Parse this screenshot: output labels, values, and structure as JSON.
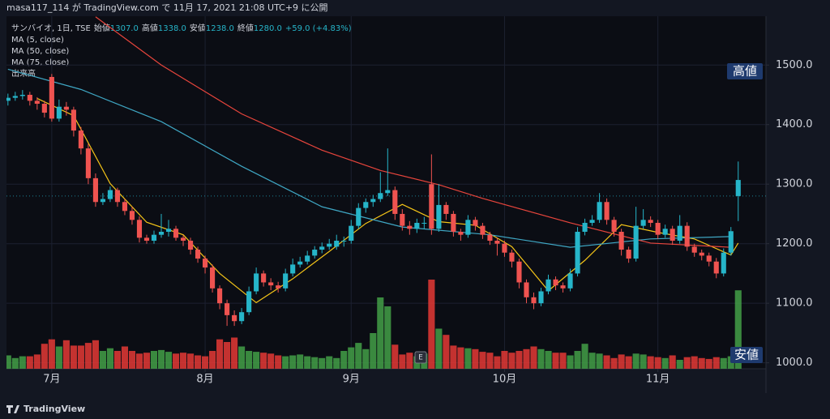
{
  "header": "masa117_114 が TradingView.com で 11月 17, 2021 21:08 UTC+9 に公開",
  "footer": "TradingView",
  "chart_data": {
    "type": "candlestick",
    "symbol": "サンバイオ, 1日, TSE",
    "ohlc_legend": [
      {
        "label": "始値",
        "value": "1307.0"
      },
      {
        "label": "高値",
        "value": "1338.0"
      },
      {
        "label": "安値",
        "value": "1238.0"
      },
      {
        "label": "終値",
        "value": "1280.0"
      }
    ],
    "change": "+59.0 (+4.83%)",
    "volume_name": "出来高",
    "high_tag": "高値",
    "low_tag": "安値",
    "event_tag": "E",
    "up_color": "#26b5c9",
    "down_color": "#ef5350",
    "volume_up_color": "#43a047",
    "volume_down_color": "#e53935",
    "grid": true,
    "xlim": [
      -0.2,
      103.8
    ],
    "ylim": [
      990,
      1582
    ],
    "vlim": [
      0,
      100
    ],
    "yticks": [
      {
        "value": 1000,
        "label": "1000.0"
      },
      {
        "value": 1100,
        "label": "1100.0"
      },
      {
        "value": 1200,
        "label": "1200.0"
      },
      {
        "value": 1300,
        "label": "1300.0"
      },
      {
        "value": 1400,
        "label": "1400.0"
      },
      {
        "value": 1500,
        "label": "1500.0"
      }
    ],
    "xticks": [
      {
        "value": 6,
        "label": "7月"
      },
      {
        "value": 27,
        "label": "8月"
      },
      {
        "value": 47,
        "label": "9月"
      },
      {
        "value": 68,
        "label": "10月"
      },
      {
        "value": 89,
        "label": "11月"
      }
    ],
    "ohlc": [
      [
        1440,
        1452,
        1432,
        1445
      ],
      [
        1445,
        1455,
        1440,
        1448
      ],
      [
        1448,
        1458,
        1442,
        1450
      ],
      [
        1450,
        1455,
        1432,
        1440
      ],
      [
        1440,
        1446,
        1425,
        1435
      ],
      [
        1435,
        1440,
        1412,
        1420
      ],
      [
        1480,
        1485,
        1405,
        1410
      ],
      [
        1410,
        1442,
        1405,
        1430
      ],
      [
        1430,
        1438,
        1415,
        1425
      ],
      [
        1425,
        1430,
        1380,
        1390
      ],
      [
        1390,
        1396,
        1350,
        1360
      ],
      [
        1360,
        1368,
        1300,
        1310
      ],
      [
        1310,
        1318,
        1262,
        1270
      ],
      [
        1270,
        1285,
        1265,
        1275
      ],
      [
        1275,
        1296,
        1270,
        1290
      ],
      [
        1290,
        1294,
        1262,
        1270
      ],
      [
        1270,
        1275,
        1248,
        1255
      ],
      [
        1255,
        1262,
        1232,
        1240
      ],
      [
        1240,
        1246,
        1202,
        1210
      ],
      [
        1210,
        1215,
        1200,
        1205
      ],
      [
        1205,
        1222,
        1200,
        1215
      ],
      [
        1215,
        1250,
        1210,
        1220
      ],
      [
        1220,
        1240,
        1212,
        1225
      ],
      [
        1225,
        1230,
        1205,
        1210
      ],
      [
        1210,
        1214,
        1196,
        1205
      ],
      [
        1205,
        1210,
        1182,
        1190
      ],
      [
        1190,
        1195,
        1168,
        1175
      ],
      [
        1175,
        1180,
        1150,
        1160
      ],
      [
        1160,
        1165,
        1118,
        1125
      ],
      [
        1125,
        1130,
        1090,
        1100
      ],
      [
        1100,
        1106,
        1062,
        1080
      ],
      [
        1080,
        1088,
        1062,
        1070
      ],
      [
        1070,
        1092,
        1065,
        1085
      ],
      [
        1085,
        1128,
        1080,
        1120
      ],
      [
        1120,
        1160,
        1115,
        1150
      ],
      [
        1150,
        1155,
        1128,
        1135
      ],
      [
        1135,
        1142,
        1122,
        1130
      ],
      [
        1130,
        1136,
        1118,
        1125
      ],
      [
        1125,
        1158,
        1120,
        1150
      ],
      [
        1150,
        1175,
        1145,
        1165
      ],
      [
        1165,
        1178,
        1160,
        1170
      ],
      [
        1170,
        1188,
        1165,
        1180
      ],
      [
        1180,
        1196,
        1175,
        1190
      ],
      [
        1190,
        1202,
        1184,
        1195
      ],
      [
        1195,
        1208,
        1190,
        1200
      ],
      [
        1195,
        1215,
        1190,
        1205
      ],
      [
        1205,
        1212,
        1195,
        1205
      ],
      [
        1205,
        1240,
        1200,
        1230
      ],
      [
        1230,
        1268,
        1225,
        1260
      ],
      [
        1260,
        1276,
        1252,
        1270
      ],
      [
        1270,
        1282,
        1262,
        1275
      ],
      [
        1275,
        1320,
        1270,
        1285
      ],
      [
        1285,
        1360,
        1280,
        1290
      ],
      [
        1290,
        1296,
        1240,
        1250
      ],
      [
        1250,
        1258,
        1222,
        1230
      ],
      [
        1230,
        1238,
        1215,
        1225
      ],
      [
        1225,
        1242,
        1218,
        1235
      ],
      [
        1235,
        1245,
        1225,
        1235
      ],
      [
        1300,
        1350,
        1215,
        1225
      ],
      [
        1225,
        1300,
        1220,
        1265
      ],
      [
        1265,
        1270,
        1240,
        1250
      ],
      [
        1250,
        1255,
        1212,
        1220
      ],
      [
        1220,
        1225,
        1205,
        1215
      ],
      [
        1215,
        1248,
        1210,
        1240
      ],
      [
        1240,
        1245,
        1222,
        1230
      ],
      [
        1230,
        1235,
        1208,
        1215
      ],
      [
        1215,
        1220,
        1198,
        1205
      ],
      [
        1205,
        1210,
        1180,
        1200
      ],
      [
        1200,
        1205,
        1178,
        1185
      ],
      [
        1185,
        1190,
        1160,
        1170
      ],
      [
        1170,
        1175,
        1125,
        1135
      ],
      [
        1135,
        1140,
        1100,
        1110
      ],
      [
        1110,
        1118,
        1090,
        1100
      ],
      [
        1100,
        1126,
        1095,
        1120
      ],
      [
        1120,
        1148,
        1115,
        1140
      ],
      [
        1140,
        1145,
        1122,
        1130
      ],
      [
        1130,
        1135,
        1118,
        1125
      ],
      [
        1125,
        1158,
        1120,
        1150
      ],
      [
        1150,
        1228,
        1145,
        1220
      ],
      [
        1220,
        1242,
        1214,
        1235
      ],
      [
        1235,
        1248,
        1230,
        1240
      ],
      [
        1240,
        1285,
        1235,
        1270
      ],
      [
        1270,
        1276,
        1232,
        1240
      ],
      [
        1240,
        1245,
        1212,
        1220
      ],
      [
        1220,
        1225,
        1180,
        1190
      ],
      [
        1190,
        1195,
        1168,
        1175
      ],
      [
        1175,
        1262,
        1170,
        1230
      ],
      [
        1230,
        1258,
        1225,
        1240
      ],
      [
        1240,
        1246,
        1228,
        1235
      ],
      [
        1235,
        1240,
        1208,
        1215
      ],
      [
        1215,
        1232,
        1210,
        1225
      ],
      [
        1225,
        1230,
        1198,
        1205
      ],
      [
        1205,
        1248,
        1200,
        1230
      ],
      [
        1230,
        1236,
        1188,
        1195
      ],
      [
        1195,
        1200,
        1178,
        1185
      ],
      [
        1185,
        1190,
        1172,
        1180
      ],
      [
        1180,
        1185,
        1162,
        1170
      ],
      [
        1170,
        1176,
        1142,
        1150
      ],
      [
        1150,
        1192,
        1145,
        1185
      ],
      [
        1185,
        1228,
        1180,
        1221
      ],
      [
        1307,
        1338,
        1238,
        1280
      ]
    ],
    "volume": [
      15,
      12,
      14,
      14,
      16,
      28,
      33,
      25,
      32,
      26,
      26,
      29,
      32,
      20,
      23,
      20,
      25,
      20,
      17,
      18,
      20,
      21,
      19,
      17,
      18,
      17,
      15,
      14,
      20,
      33,
      30,
      35,
      25,
      20,
      19,
      18,
      17,
      15,
      14,
      15,
      16,
      14,
      13,
      12,
      14,
      12,
      20,
      24,
      29,
      22,
      40,
      80,
      70,
      27,
      16,
      18,
      14,
      17,
      100,
      45,
      38,
      26,
      24,
      23,
      22,
      19,
      18,
      14,
      20,
      18,
      20,
      22,
      25,
      22,
      20,
      18,
      18,
      15,
      20,
      28,
      18,
      17,
      15,
      12,
      16,
      14,
      17,
      16,
      14,
      13,
      12,
      15,
      10,
      13,
      14,
      12,
      11,
      13,
      12,
      14,
      88
    ],
    "series": [
      {
        "name": "MA (5, close)",
        "color": "#f5c518",
        "x": [
          4,
          9,
          14,
          19,
          24,
          29,
          34,
          39,
          44,
          49,
          54,
          59,
          64,
          69,
          74,
          79,
          84,
          89,
          94,
          99,
          100
        ],
        "values": [
          1444,
          1415,
          1301,
          1236,
          1215,
          1150,
          1101,
          1141,
          1187,
          1234,
          1266,
          1237,
          1231,
          1195,
          1121,
          1172,
          1232,
          1219,
          1208,
          1181,
          1201
        ]
      },
      {
        "name": "MA (50, close)",
        "color": "#3fa7c4",
        "x": [
          0,
          10,
          21,
          32,
          43,
          54,
          66,
          77,
          88,
          99
        ],
        "values": [
          1493,
          1459,
          1405,
          1330,
          1262,
          1228,
          1215,
          1194,
          1208,
          1212
        ]
      },
      {
        "name": "MA (75, close)",
        "color": "#e8453c",
        "x": [
          12,
          21,
          32,
          43,
          51,
          59,
          65,
          77,
          88,
          99
        ],
        "values": [
          1581,
          1500,
          1418,
          1357,
          1323,
          1299,
          1276,
          1235,
          1201,
          1194
        ]
      }
    ]
  }
}
